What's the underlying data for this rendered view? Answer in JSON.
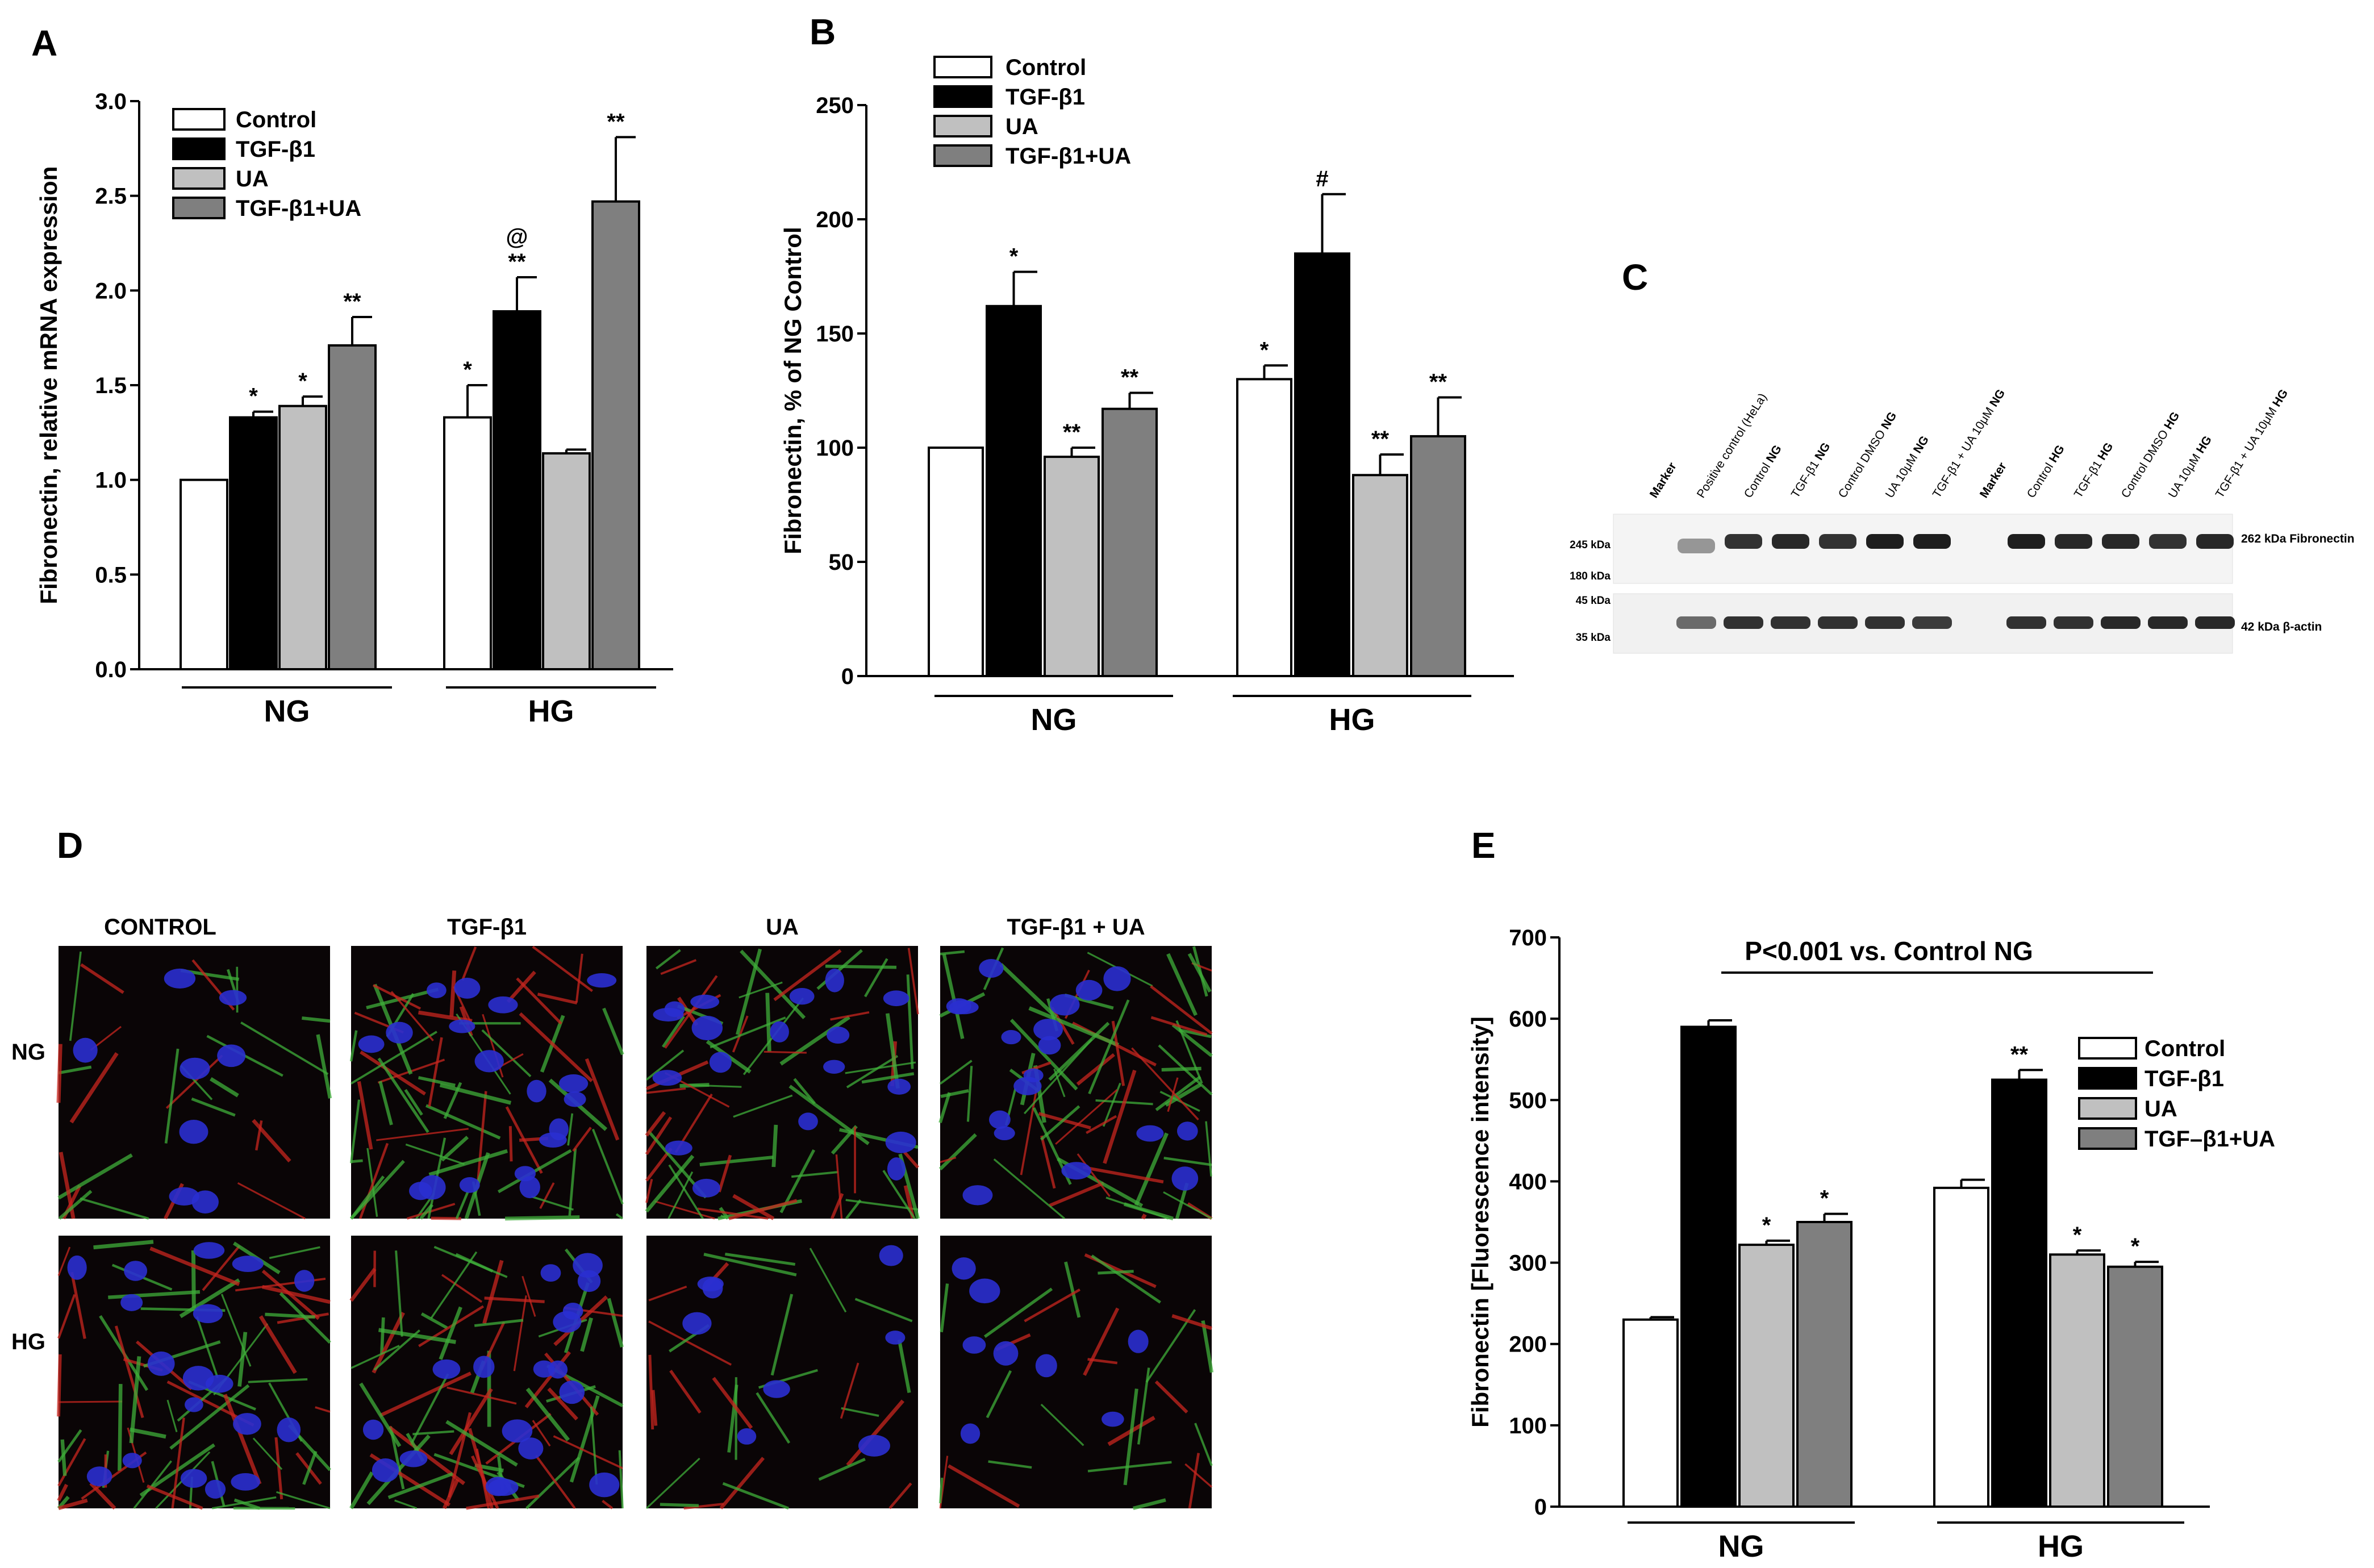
{
  "panels": {
    "A": "A",
    "B": "B",
    "C": "C",
    "D": "D",
    "E": "E"
  },
  "colors": {
    "Control": "#ffffff",
    "TGF-β1": "#000000",
    "UA": "#c0c0c0",
    "TGF-β1+UA": "#7f7f7f"
  },
  "chart_data": [
    {
      "id": "A",
      "type": "bar",
      "ylabel": "Fibronectin, relative mRNA expression",
      "xlabel": "",
      "ylim": [
        0,
        3.0
      ],
      "yticks": [
        "0.0",
        "0.5",
        "1.0",
        "1.5",
        "2.0",
        "2.5",
        "3.0"
      ],
      "categories": [
        "NG",
        "HG"
      ],
      "legend": [
        "Control",
        "TGF-β1",
        "UA",
        "TGF-β1+UA"
      ],
      "legend_position": "top-left",
      "series": [
        {
          "name": "Control",
          "values": [
            1.0,
            1.33
          ],
          "errors": [
            0.0,
            0.17
          ],
          "sig": [
            "",
            "*"
          ]
        },
        {
          "name": "TGF-β1",
          "values": [
            1.33,
            1.89
          ],
          "errors": [
            0.03,
            0.18
          ],
          "sig": [
            "*",
            "**"
          ],
          "sig_top": [
            "",
            "@"
          ]
        },
        {
          "name": "UA",
          "values": [
            1.39,
            1.14
          ],
          "errors": [
            0.05,
            0.02
          ],
          "sig": [
            "*",
            ""
          ]
        },
        {
          "name": "TGF-β1+UA",
          "values": [
            1.71,
            2.47
          ],
          "errors": [
            0.15,
            0.34
          ],
          "sig": [
            "**",
            "**"
          ]
        }
      ]
    },
    {
      "id": "B",
      "type": "bar",
      "ylabel": "Fibronectin, % of NG Control",
      "xlabel": "",
      "ylim": [
        0,
        250
      ],
      "yticks": [
        "0",
        "50",
        "100",
        "150",
        "200",
        "250"
      ],
      "categories": [
        "NG",
        "HG"
      ],
      "legend": [
        "Control",
        "TGF-β1",
        "UA",
        "TGF-β1+UA"
      ],
      "legend_position": "top-left",
      "series": [
        {
          "name": "Control",
          "values": [
            100,
            130
          ],
          "errors": [
            0,
            6
          ],
          "sig": [
            "",
            "*"
          ]
        },
        {
          "name": "TGF-β1",
          "values": [
            162,
            185
          ],
          "errors": [
            15,
            26
          ],
          "sig": [
            "*",
            "#"
          ]
        },
        {
          "name": "UA",
          "values": [
            96,
            88
          ],
          "errors": [
            4,
            9
          ],
          "sig": [
            "**",
            "**"
          ]
        },
        {
          "name": "TGF-β1+UA",
          "values": [
            117,
            105
          ],
          "errors": [
            7,
            17
          ],
          "sig": [
            "**",
            "**"
          ]
        }
      ]
    },
    {
      "id": "E",
      "type": "bar",
      "ylabel": "Fibronectin [Fluorescence intensity]",
      "xlabel": "",
      "ylim": [
        0,
        700
      ],
      "yticks": [
        "0",
        "100",
        "200",
        "300",
        "400",
        "500",
        "600",
        "700"
      ],
      "categories": [
        "NG",
        "HG"
      ],
      "annotation": "P<0.001 vs. Control NG",
      "legend": [
        "Control",
        "TGF-β1",
        "UA",
        "TGF–β1+UA"
      ],
      "legend_position": "right",
      "series": [
        {
          "name": "Control",
          "values": [
            230,
            392
          ],
          "errors": [
            3,
            10
          ],
          "sig": [
            "",
            ""
          ]
        },
        {
          "name": "TGF-β1",
          "values": [
            590,
            525
          ],
          "errors": [
            8,
            12
          ],
          "sig": [
            "",
            "**"
          ]
        },
        {
          "name": "UA",
          "values": [
            322,
            310
          ],
          "errors": [
            5,
            5
          ],
          "sig": [
            "*",
            "*"
          ]
        },
        {
          "name": "TGF-β1+UA",
          "values": [
            350,
            295
          ],
          "errors": [
            10,
            6
          ],
          "sig": [
            "*",
            "*"
          ]
        }
      ]
    }
  ],
  "blot": {
    "lanes": [
      {
        "text": "Marker",
        "bold": true
      },
      {
        "text": "Positive control (HeLa)",
        "bold": false
      },
      {
        "text": "Control ",
        "bold_suffix": "NG"
      },
      {
        "text": "TGF-β1 ",
        "bold_suffix": "NG"
      },
      {
        "text": "Control DMSO ",
        "bold_suffix": "NG"
      },
      {
        "text": "UA 10μM ",
        "bold_suffix": "NG"
      },
      {
        "text": "TGF-β1 + UA 10μM ",
        "bold_suffix": "NG"
      },
      {
        "text": "Marker",
        "bold": true
      },
      {
        "text": "Control ",
        "bold_suffix": "HG"
      },
      {
        "text": "TGF-β1 ",
        "bold_suffix": "HG"
      },
      {
        "text": "Control DMSO ",
        "bold_suffix": "HG"
      },
      {
        "text": "UA 10μM ",
        "bold_suffix": "HG"
      },
      {
        "text": "TGF-β1 + UA 10μM ",
        "bold_suffix": "HG"
      }
    ],
    "mw_top": [
      "245 kDa",
      "180 kDa"
    ],
    "mw_bottom": [
      "45 kDa",
      "35 kDa"
    ],
    "label_top": "262 kDa Fibronectin",
    "label_bottom": "42 kDa  β-actin",
    "fn_intensity": [
      0.0,
      0.35,
      0.85,
      0.9,
      0.85,
      0.95,
      0.95,
      0.0,
      0.95,
      0.9,
      0.9,
      0.85,
      0.9
    ],
    "actin_intensity": [
      0.0,
      0.6,
      0.9,
      0.9,
      0.9,
      0.9,
      0.85,
      0.0,
      0.9,
      0.9,
      0.95,
      0.95,
      0.95
    ]
  },
  "micrographs": {
    "columns": [
      "CONTROL",
      "TGF-β1",
      "UA",
      "TGF-β1 + UA"
    ],
    "rows": [
      "NG",
      "HG"
    ]
  }
}
